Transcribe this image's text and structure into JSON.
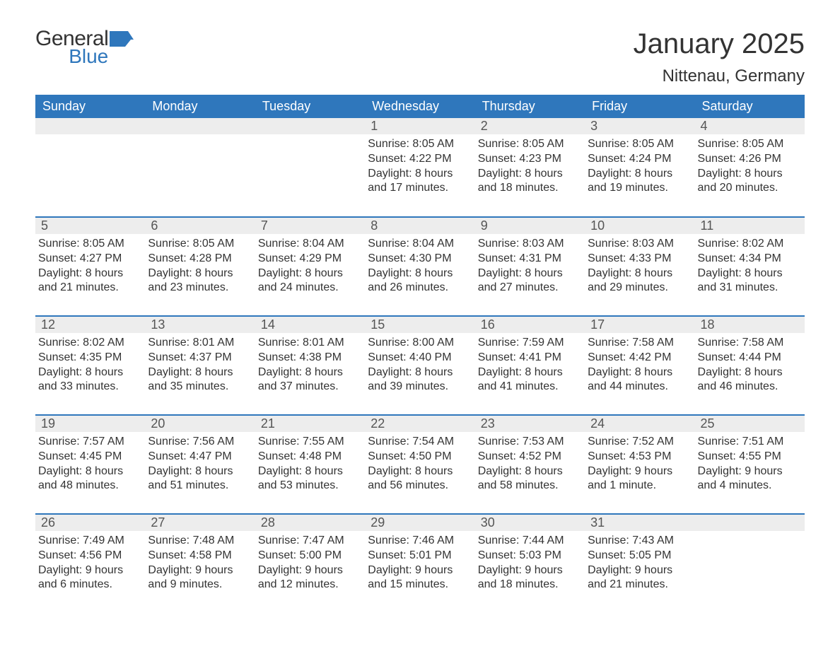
{
  "logo": {
    "general": "General",
    "blue": "Blue",
    "flag_color": "#2f77bc"
  },
  "title": "January 2025",
  "location": "Nittenau, Germany",
  "colors": {
    "header_bg": "#2f77bc",
    "header_text": "#ffffff",
    "daynum_bg": "#ededed",
    "text": "#333333",
    "rule": "#2f77bc"
  },
  "weekdays": [
    "Sunday",
    "Monday",
    "Tuesday",
    "Wednesday",
    "Thursday",
    "Friday",
    "Saturday"
  ],
  "weeks": [
    [
      null,
      null,
      null,
      {
        "n": "1",
        "sr": "Sunrise: 8:05 AM",
        "ss": "Sunset: 4:22 PM",
        "dl": "Daylight: 8 hours and 17 minutes."
      },
      {
        "n": "2",
        "sr": "Sunrise: 8:05 AM",
        "ss": "Sunset: 4:23 PM",
        "dl": "Daylight: 8 hours and 18 minutes."
      },
      {
        "n": "3",
        "sr": "Sunrise: 8:05 AM",
        "ss": "Sunset: 4:24 PM",
        "dl": "Daylight: 8 hours and 19 minutes."
      },
      {
        "n": "4",
        "sr": "Sunrise: 8:05 AM",
        "ss": "Sunset: 4:26 PM",
        "dl": "Daylight: 8 hours and 20 minutes."
      }
    ],
    [
      {
        "n": "5",
        "sr": "Sunrise: 8:05 AM",
        "ss": "Sunset: 4:27 PM",
        "dl": "Daylight: 8 hours and 21 minutes."
      },
      {
        "n": "6",
        "sr": "Sunrise: 8:05 AM",
        "ss": "Sunset: 4:28 PM",
        "dl": "Daylight: 8 hours and 23 minutes."
      },
      {
        "n": "7",
        "sr": "Sunrise: 8:04 AM",
        "ss": "Sunset: 4:29 PM",
        "dl": "Daylight: 8 hours and 24 minutes."
      },
      {
        "n": "8",
        "sr": "Sunrise: 8:04 AM",
        "ss": "Sunset: 4:30 PM",
        "dl": "Daylight: 8 hours and 26 minutes."
      },
      {
        "n": "9",
        "sr": "Sunrise: 8:03 AM",
        "ss": "Sunset: 4:31 PM",
        "dl": "Daylight: 8 hours and 27 minutes."
      },
      {
        "n": "10",
        "sr": "Sunrise: 8:03 AM",
        "ss": "Sunset: 4:33 PM",
        "dl": "Daylight: 8 hours and 29 minutes."
      },
      {
        "n": "11",
        "sr": "Sunrise: 8:02 AM",
        "ss": "Sunset: 4:34 PM",
        "dl": "Daylight: 8 hours and 31 minutes."
      }
    ],
    [
      {
        "n": "12",
        "sr": "Sunrise: 8:02 AM",
        "ss": "Sunset: 4:35 PM",
        "dl": "Daylight: 8 hours and 33 minutes."
      },
      {
        "n": "13",
        "sr": "Sunrise: 8:01 AM",
        "ss": "Sunset: 4:37 PM",
        "dl": "Daylight: 8 hours and 35 minutes."
      },
      {
        "n": "14",
        "sr": "Sunrise: 8:01 AM",
        "ss": "Sunset: 4:38 PM",
        "dl": "Daylight: 8 hours and 37 minutes."
      },
      {
        "n": "15",
        "sr": "Sunrise: 8:00 AM",
        "ss": "Sunset: 4:40 PM",
        "dl": "Daylight: 8 hours and 39 minutes."
      },
      {
        "n": "16",
        "sr": "Sunrise: 7:59 AM",
        "ss": "Sunset: 4:41 PM",
        "dl": "Daylight: 8 hours and 41 minutes."
      },
      {
        "n": "17",
        "sr": "Sunrise: 7:58 AM",
        "ss": "Sunset: 4:42 PM",
        "dl": "Daylight: 8 hours and 44 minutes."
      },
      {
        "n": "18",
        "sr": "Sunrise: 7:58 AM",
        "ss": "Sunset: 4:44 PM",
        "dl": "Daylight: 8 hours and 46 minutes."
      }
    ],
    [
      {
        "n": "19",
        "sr": "Sunrise: 7:57 AM",
        "ss": "Sunset: 4:45 PM",
        "dl": "Daylight: 8 hours and 48 minutes."
      },
      {
        "n": "20",
        "sr": "Sunrise: 7:56 AM",
        "ss": "Sunset: 4:47 PM",
        "dl": "Daylight: 8 hours and 51 minutes."
      },
      {
        "n": "21",
        "sr": "Sunrise: 7:55 AM",
        "ss": "Sunset: 4:48 PM",
        "dl": "Daylight: 8 hours and 53 minutes."
      },
      {
        "n": "22",
        "sr": "Sunrise: 7:54 AM",
        "ss": "Sunset: 4:50 PM",
        "dl": "Daylight: 8 hours and 56 minutes."
      },
      {
        "n": "23",
        "sr": "Sunrise: 7:53 AM",
        "ss": "Sunset: 4:52 PM",
        "dl": "Daylight: 8 hours and 58 minutes."
      },
      {
        "n": "24",
        "sr": "Sunrise: 7:52 AM",
        "ss": "Sunset: 4:53 PM",
        "dl": "Daylight: 9 hours and 1 minute."
      },
      {
        "n": "25",
        "sr": "Sunrise: 7:51 AM",
        "ss": "Sunset: 4:55 PM",
        "dl": "Daylight: 9 hours and 4 minutes."
      }
    ],
    [
      {
        "n": "26",
        "sr": "Sunrise: 7:49 AM",
        "ss": "Sunset: 4:56 PM",
        "dl": "Daylight: 9 hours and 6 minutes."
      },
      {
        "n": "27",
        "sr": "Sunrise: 7:48 AM",
        "ss": "Sunset: 4:58 PM",
        "dl": "Daylight: 9 hours and 9 minutes."
      },
      {
        "n": "28",
        "sr": "Sunrise: 7:47 AM",
        "ss": "Sunset: 5:00 PM",
        "dl": "Daylight: 9 hours and 12 minutes."
      },
      {
        "n": "29",
        "sr": "Sunrise: 7:46 AM",
        "ss": "Sunset: 5:01 PM",
        "dl": "Daylight: 9 hours and 15 minutes."
      },
      {
        "n": "30",
        "sr": "Sunrise: 7:44 AM",
        "ss": "Sunset: 5:03 PM",
        "dl": "Daylight: 9 hours and 18 minutes."
      },
      {
        "n": "31",
        "sr": "Sunrise: 7:43 AM",
        "ss": "Sunset: 5:05 PM",
        "dl": "Daylight: 9 hours and 21 minutes."
      },
      null
    ]
  ]
}
